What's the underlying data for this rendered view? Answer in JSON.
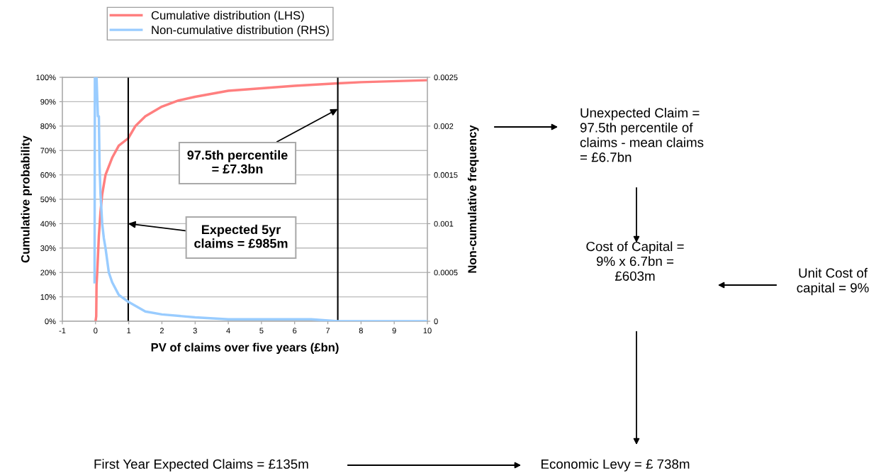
{
  "chart_data": {
    "type": "line",
    "xlabel": "PV of claims over five years (£bn)",
    "ylabel": "Cumulative probability",
    "y2label": "Non-cumulative frequency",
    "xlim": [
      -1,
      10
    ],
    "xticks": [
      -1,
      0,
      1,
      2,
      3,
      4,
      5,
      6,
      7,
      8,
      9,
      10
    ],
    "ylim": [
      0,
      100
    ],
    "yticks": [
      {
        "value": 0,
        "label": "0%"
      },
      {
        "value": 10,
        "label": "10%"
      },
      {
        "value": 20,
        "label": "20%"
      },
      {
        "value": 30,
        "label": "30%"
      },
      {
        "value": 40,
        "label": "40%"
      },
      {
        "value": 50,
        "label": "50%"
      },
      {
        "value": 60,
        "label": "60%"
      },
      {
        "value": 70,
        "label": "70%"
      },
      {
        "value": 80,
        "label": "80%"
      },
      {
        "value": 90,
        "label": "90%"
      },
      {
        "value": 100,
        "label": "100%"
      }
    ],
    "y2lim": [
      0,
      0.0025
    ],
    "y2ticks": [
      0,
      0.0005,
      0.001,
      0.0015,
      0.002,
      0.0025
    ],
    "grid": "y",
    "legend": "top left",
    "marker": "none",
    "line_style": "solid",
    "series": [
      {
        "name": "Cumulative distribution (LHS)",
        "color": "#ff7f7f",
        "x": [
          0,
          0.02,
          0.03,
          0.05,
          0.1,
          0.15,
          0.2,
          0.3,
          0.5,
          0.7,
          0.985,
          1.2,
          1.5,
          2,
          2.5,
          3,
          4,
          5,
          6,
          7.3,
          8,
          10
        ],
        "values": [
          0,
          2,
          15,
          20,
          35,
          45,
          52,
          60,
          67,
          72,
          75,
          80,
          84,
          88,
          90.5,
          92,
          94.5,
          95.5,
          96.5,
          97.5,
          98,
          98.8
        ]
      },
      {
        "name": "Non-cumulative distribution (RHS)",
        "color": "#99ccff",
        "axis": "y2",
        "x": [
          -0.03,
          -0.02,
          0.03,
          0.07,
          0.1,
          0.12,
          0.15,
          0.2,
          0.25,
          0.3,
          0.4,
          0.5,
          0.7,
          0.985,
          1.5,
          2,
          3,
          4,
          6.5,
          7.3,
          10
        ],
        "values": [
          0.0004,
          0.0025,
          0.0025,
          0.0021,
          0.0021,
          0.0016,
          0.0013,
          0.001,
          0.00085,
          0.00075,
          0.0005,
          0.0004,
          0.00027,
          0.0002,
          0.0001,
          7e-05,
          4e-05,
          2e-05,
          2e-05,
          0,
          0
        ]
      }
    ],
    "ref_lines": [
      {
        "axis": "x",
        "value": 0.985,
        "color": "#000000"
      },
      {
        "axis": "x",
        "value": 7.3,
        "color": "#000000"
      }
    ],
    "annotations": [
      {
        "text": "97.5th percentile\n= £7.3bn",
        "x": 7.3,
        "y": 87
      },
      {
        "text": "Expected 5yr\nclaims = £985m",
        "x": 0.985,
        "y": 40
      },
      "Unexpected Claim =\n97.5th percentile of\nclaims - mean claims\n= £6.7bn",
      "Cost of Capital =\n9% x 6.7bn =\n£603m",
      "Unit Cost of\ncapital = 9%",
      "First Year Expected Claims = £135m",
      "Economic Levy = £ 738m"
    ]
  }
}
